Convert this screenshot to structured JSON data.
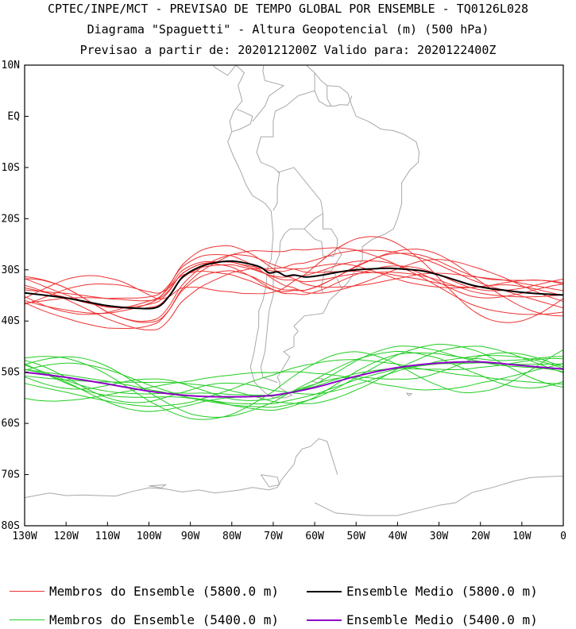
{
  "header": {
    "title_line1": "CPTEC/INPE/MCT - PREVISAO DE TEMPO GLOBAL POR ENSEMBLE - TQ0126L028",
    "title_line2": "Diagrama \"Spaguetti\" - Altura Geopotencial (m) (500 hPa)",
    "title_line3": "Previsao a partir de: 2020121200Z  Valido para: 2020122400Z"
  },
  "map": {
    "lon_range": [
      -130,
      0
    ],
    "lat_range": [
      -80,
      10
    ],
    "lat_ticks": [
      {
        "lat": 10,
        "label": "10N"
      },
      {
        "lat": 0,
        "label": "EQ"
      },
      {
        "lat": -10,
        "label": "10S"
      },
      {
        "lat": -20,
        "label": "20S"
      },
      {
        "lat": -30,
        "label": "30S"
      },
      {
        "lat": -40,
        "label": "40S"
      },
      {
        "lat": -50,
        "label": "50S"
      },
      {
        "lat": -60,
        "label": "60S"
      },
      {
        "lat": -70,
        "label": "70S"
      },
      {
        "lat": -80,
        "label": "80S"
      }
    ],
    "lon_ticks": [
      {
        "lon": -130,
        "label": "130W"
      },
      {
        "lon": -120,
        "label": "120W"
      },
      {
        "lon": -110,
        "label": "110W"
      },
      {
        "lon": -100,
        "label": "100W"
      },
      {
        "lon": -90,
        "label": "90W"
      },
      {
        "lon": -80,
        "label": "80W"
      },
      {
        "lon": -70,
        "label": "70W"
      },
      {
        "lon": -60,
        "label": "60W"
      },
      {
        "lon": -50,
        "label": "50W"
      },
      {
        "lon": -40,
        "label": "40W"
      },
      {
        "lon": -30,
        "label": "30W"
      },
      {
        "lon": -20,
        "label": "20W"
      },
      {
        "lon": -10,
        "label": "10W"
      },
      {
        "lon": 0,
        "label": "0"
      }
    ],
    "coast_color": "#a8a8a8"
  },
  "chart_data": {
    "type": "line",
    "x_unit": "longitude (degrees east)",
    "y_unit": "latitude (degrees)",
    "series": [
      {
        "name": "Ensemble Medio (5800.0 m)",
        "color": "#000000",
        "lon": [
          -130,
          -120,
          -110,
          -103,
          -98,
          -95,
          -92,
          -88,
          -84,
          -80,
          -76,
          -73,
          -71,
          -69,
          -67,
          -65,
          -62,
          -58,
          -54,
          -50,
          -46,
          -42,
          -38,
          -34,
          -30,
          -26,
          -22,
          -18,
          -14,
          -10,
          -5,
          0
        ],
        "lat": [
          -34.5,
          -35.5,
          -37.0,
          -37.5,
          -37.3,
          -35,
          -31.5,
          -29.5,
          -28.6,
          -28.3,
          -28.8,
          -29.5,
          -30.6,
          -30.4,
          -31.2,
          -31.0,
          -31.4,
          -31.0,
          -30.4,
          -30.0,
          -29.8,
          -29.7,
          -29.9,
          -30.2,
          -31.0,
          -32.0,
          -33.0,
          -33.6,
          -34.0,
          -34.4,
          -34.7,
          -34.9
        ]
      },
      {
        "name": "Ensemble Medio (5400.0 m)",
        "color": "#8e00c8",
        "lon": [
          -130,
          -120,
          -110,
          -100,
          -90,
          -80,
          -70,
          -60,
          -50,
          -40,
          -30,
          -20,
          -10,
          0
        ],
        "lat": [
          -50.0,
          -51.0,
          -52.3,
          -53.7,
          -54.6,
          -54.8,
          -54.5,
          -53.0,
          -50.8,
          -49.1,
          -48.2,
          -48.0,
          -48.7,
          -49.4
        ]
      }
    ],
    "member_groups": [
      {
        "name": "Membros do Ensemble (5800.0 m)",
        "color": "#ee3333",
        "base_series": 0,
        "count": 12
      },
      {
        "name": "Membros do Ensemble (5400.0 m)",
        "color": "#22cc22",
        "base_series": 1,
        "count": 12
      }
    ]
  },
  "legend": {
    "items": [
      {
        "label": "Membros do Ensemble (5800.0 m)",
        "color": "#ee3333"
      },
      {
        "label": "Ensemble Medio (5800.0 m)",
        "color": "#000000"
      },
      {
        "label": "Membros do Ensemble (5400.0 m)",
        "color": "#22cc22"
      },
      {
        "label": "Ensemble Medio (5400.0 m)",
        "color": "#8e00c8"
      }
    ]
  }
}
